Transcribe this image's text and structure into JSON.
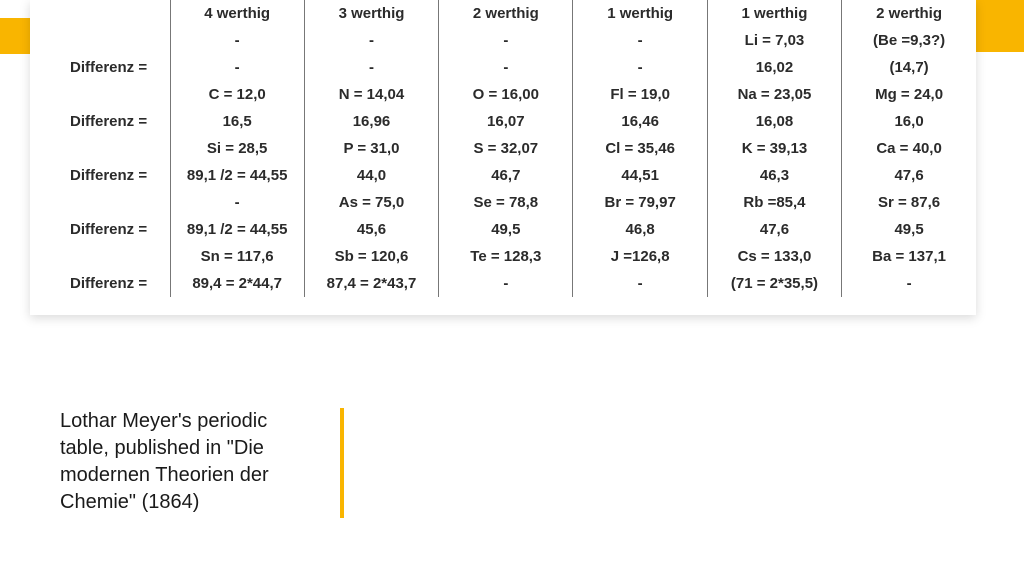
{
  "accent_color": "#f9b500",
  "caption": "Lothar Meyer's periodic table, published in \"Die modernen Theorien der Chemie\" (1864)",
  "column_headers": [
    "4 werthig",
    "3 werthig",
    "2 werthig",
    "1 werthig",
    "1 werthig",
    "2 werthig"
  ],
  "row_labels": [
    "",
    "Differenz =",
    "",
    "Differenz =",
    "",
    "Differenz =",
    "",
    "Differenz =",
    "",
    "Differenz ="
  ],
  "rows": [
    [
      "-",
      "-",
      "-",
      "-",
      "Li = 7,03",
      "(Be =9,3?)"
    ],
    [
      "-",
      "-",
      "-",
      "-",
      "16,02",
      "(14,7)"
    ],
    [
      "C = 12,0",
      "N = 14,04",
      "O = 16,00",
      "Fl = 19,0",
      "Na = 23,05",
      "Mg = 24,0"
    ],
    [
      "16,5",
      "16,96",
      "16,07",
      "16,46",
      "16,08",
      "16,0"
    ],
    [
      "Si = 28,5",
      "P = 31,0",
      "S = 32,07",
      "Cl = 35,46",
      "K = 39,13",
      "Ca = 40,0"
    ],
    [
      "89,1 /2 = 44,55",
      "44,0",
      "46,7",
      "44,51",
      "46,3",
      "47,6"
    ],
    [
      "-",
      "As = 75,0",
      "Se = 78,8",
      "Br = 79,97",
      "Rb =85,4",
      "Sr = 87,6"
    ],
    [
      "89,1 /2 = 44,55",
      "45,6",
      "49,5",
      "46,8",
      "47,6",
      "49,5"
    ],
    [
      "Sn = 117,6",
      "Sb = 120,6",
      "Te = 128,3",
      "J =126,8",
      "Cs = 133,0",
      "Ba = 137,1"
    ],
    [
      "89,4 = 2*44,7",
      "87,4 = 2*43,7",
      "-",
      "-",
      "(71 = 2*35,5)",
      "-"
    ]
  ]
}
